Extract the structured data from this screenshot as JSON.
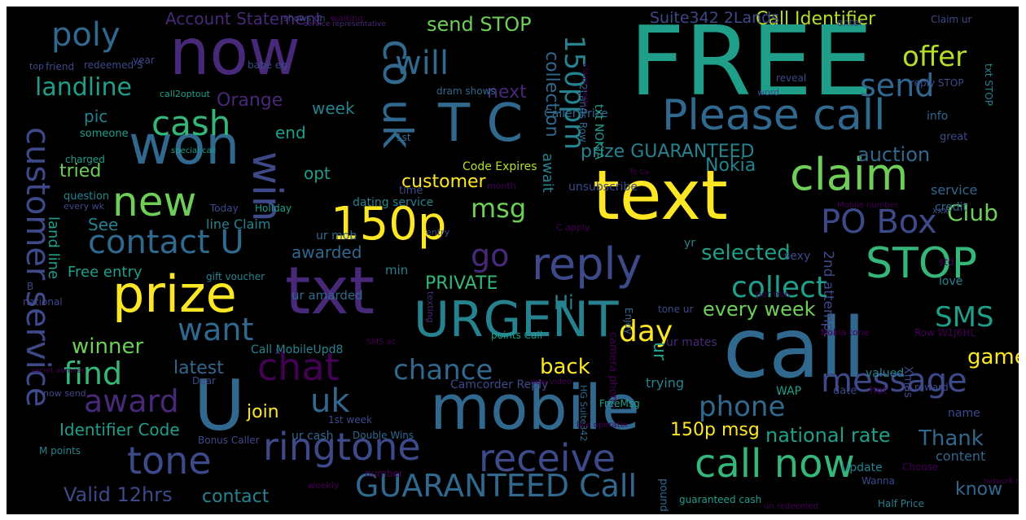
{
  "palette": {
    "yellow": "#fde725",
    "lime": "#b5de2b",
    "green": "#6ece58",
    "sea": "#35b779",
    "teal": "#1f9e89",
    "cyan": "#26828e",
    "blue": "#31688e",
    "indigo": "#3e4989",
    "purple": "#482878",
    "dark": "#440154"
  },
  "words": [
    {
      "text": "FREE",
      "color": "teal"
    },
    {
      "text": "call",
      "color": "blue"
    },
    {
      "text": "now",
      "color": "purple"
    },
    {
      "text": "text",
      "color": "yellow"
    },
    {
      "text": "txt",
      "color": "purple"
    },
    {
      "text": "U",
      "color": "blue"
    },
    {
      "text": "mobile",
      "color": "blue"
    },
    {
      "text": "URGENT",
      "color": "cyan"
    },
    {
      "text": "prize",
      "color": "yellow"
    },
    {
      "text": "won",
      "color": "blue"
    },
    {
      "text": "T C",
      "color": "blue"
    },
    {
      "text": "co uk",
      "color": "blue"
    },
    {
      "text": "Please call",
      "color": "blue"
    },
    {
      "text": "reply",
      "color": "indigo"
    },
    {
      "text": "STOP",
      "color": "sea"
    },
    {
      "text": "claim",
      "color": "green"
    },
    {
      "text": "150p",
      "color": "yellow"
    },
    {
      "text": "win",
      "color": "indigo"
    },
    {
      "text": "new",
      "color": "green"
    },
    {
      "text": "call now",
      "color": "sea"
    },
    {
      "text": "ringtone",
      "color": "indigo"
    },
    {
      "text": "tone",
      "color": "indigo"
    },
    {
      "text": "receive",
      "color": "indigo"
    },
    {
      "text": "chat",
      "color": "dark"
    },
    {
      "text": "customer service",
      "color": "indigo"
    },
    {
      "text": "message",
      "color": "indigo"
    },
    {
      "text": "GUARANTEED Call",
      "color": "blue"
    },
    {
      "text": "cash",
      "color": "sea"
    },
    {
      "text": "poly",
      "color": "blue"
    },
    {
      "text": "will",
      "color": "blue"
    },
    {
      "text": "send",
      "color": "blue"
    },
    {
      "text": "PO Box",
      "color": "indigo"
    },
    {
      "text": "contact U",
      "color": "blue"
    },
    {
      "text": "find",
      "color": "sea"
    },
    {
      "text": "award",
      "color": "purple"
    },
    {
      "text": "uk",
      "color": "blue"
    },
    {
      "text": "phone",
      "color": "blue"
    },
    {
      "text": "want",
      "color": "blue"
    },
    {
      "text": "landline",
      "color": "teal"
    },
    {
      "text": "offer",
      "color": "lime"
    },
    {
      "text": "150ppm",
      "color": "cyan"
    },
    {
      "text": "collect",
      "color": "teal"
    },
    {
      "text": "SMS",
      "color": "teal"
    },
    {
      "text": "day",
      "color": "yellow"
    },
    {
      "text": "go",
      "color": "purple"
    },
    {
      "text": "msg",
      "color": "green"
    },
    {
      "text": "chance",
      "color": "blue"
    },
    {
      "text": "Club",
      "color": "green"
    },
    {
      "text": "Nokia",
      "color": "cyan"
    },
    {
      "text": "auction",
      "color": "blue"
    },
    {
      "text": "game",
      "color": "yellow"
    },
    {
      "text": "Thank",
      "color": "blue"
    },
    {
      "text": "know",
      "color": "blue"
    },
    {
      "text": "selected",
      "color": "teal"
    },
    {
      "text": "every week",
      "color": "green"
    },
    {
      "text": "prize GUARANTEED",
      "color": "cyan"
    },
    {
      "text": "national rate",
      "color": "teal"
    },
    {
      "text": "send STOP",
      "color": "green"
    },
    {
      "text": "collection",
      "color": "blue"
    },
    {
      "text": "Call Identifier",
      "color": "lime"
    },
    {
      "text": "Account Statement",
      "color": "purple"
    },
    {
      "text": "Suite342 2Lands",
      "color": "indigo"
    },
    {
      "text": "Orange",
      "color": "purple"
    },
    {
      "text": "pic",
      "color": "cyan"
    },
    {
      "text": "week",
      "color": "cyan"
    },
    {
      "text": "end",
      "color": "teal"
    },
    {
      "text": "next",
      "color": "purple"
    },
    {
      "text": "tried",
      "color": "green"
    },
    {
      "text": "opt",
      "color": "teal"
    },
    {
      "text": "customer",
      "color": "yellow"
    },
    {
      "text": "await",
      "color": "cyan"
    },
    {
      "text": "Hi",
      "color": "cyan"
    },
    {
      "text": "See",
      "color": "cyan"
    },
    {
      "text": "awarded",
      "color": "blue"
    },
    {
      "text": "PRIVATE",
      "color": "sea"
    },
    {
      "text": "ur",
      "color": "teal"
    },
    {
      "text": "latest",
      "color": "blue"
    },
    {
      "text": "back",
      "color": "yellow"
    },
    {
      "text": "winner",
      "color": "green"
    },
    {
      "text": "join",
      "color": "yellow"
    },
    {
      "text": "Identifier Code",
      "color": "teal"
    },
    {
      "text": "Valid 12hrs",
      "color": "indigo"
    },
    {
      "text": "contact",
      "color": "cyan"
    },
    {
      "text": "150p msg",
      "color": "yellow"
    },
    {
      "text": "Free entry",
      "color": "teal"
    },
    {
      "text": "land line",
      "color": "teal"
    },
    {
      "text": "Code Expires",
      "color": "lime"
    },
    {
      "text": "dating service",
      "color": "cyan"
    },
    {
      "text": "ur amarded",
      "color": "blue"
    },
    {
      "text": "Call MobileUpd8",
      "color": "cyan"
    },
    {
      "text": "2nd attempt",
      "color": "indigo"
    },
    {
      "text": "Camcorder Reply",
      "color": "indigo"
    },
    {
      "text": "camera phone",
      "color": "dark"
    },
    {
      "text": "Caller Prize",
      "color": "blue"
    },
    {
      "text": "2Lands Row",
      "color": "blue"
    },
    {
      "text": "txt NOKIA",
      "color": "teal"
    },
    {
      "text": "unsubscribe",
      "color": "indigo"
    },
    {
      "text": "trying",
      "color": "cyan"
    },
    {
      "text": "ur mates",
      "color": "purple"
    },
    {
      "text": "valued",
      "color": "cyan"
    },
    {
      "text": "Xmas",
      "color": "indigo"
    },
    {
      "text": "sexy",
      "color": "indigo"
    },
    {
      "text": "service",
      "color": "blue"
    },
    {
      "text": "credit",
      "color": "blue"
    },
    {
      "text": "love",
      "color": "cyan"
    },
    {
      "text": "std",
      "color": "dark"
    },
    {
      "text": "content",
      "color": "blue"
    },
    {
      "text": "hot",
      "color": "dark"
    },
    {
      "text": "WAP",
      "color": "teal"
    },
    {
      "text": "date",
      "color": "indigo"
    },
    {
      "text": "name",
      "color": "indigo"
    },
    {
      "text": "reward",
      "color": "indigo"
    },
    {
      "text": "info",
      "color": "blue"
    },
    {
      "text": "reply STOP",
      "color": "indigo"
    },
    {
      "text": "txt STOP",
      "color": "cyan"
    },
    {
      "text": "reveal",
      "color": "indigo"
    },
    {
      "text": "great",
      "color": "indigo"
    },
    {
      "text": "word",
      "color": "indigo"
    },
    {
      "text": "Claim ur",
      "color": "indigo"
    },
    {
      "text": "enter",
      "color": "indigo"
    },
    {
      "text": "ur mob",
      "color": "blue"
    },
    {
      "text": "1st",
      "color": "blue"
    },
    {
      "text": "min",
      "color": "cyan"
    },
    {
      "text": "time",
      "color": "indigo"
    },
    {
      "text": "month",
      "color": "dark"
    },
    {
      "text": "line Claim",
      "color": "cyan"
    },
    {
      "text": "someone",
      "color": "teal"
    },
    {
      "text": "question",
      "color": "cyan"
    },
    {
      "text": "charged",
      "color": "teal"
    },
    {
      "text": "Today",
      "color": "indigo"
    },
    {
      "text": "Holiday",
      "color": "teal"
    },
    {
      "text": "year",
      "color": "indigo"
    },
    {
      "text": "redeemed S",
      "color": "indigo"
    },
    {
      "text": "friend",
      "color": "indigo"
    },
    {
      "text": "babe eg",
      "color": "indigo"
    },
    {
      "text": "dram shows",
      "color": "blue"
    },
    {
      "text": "shows un",
      "color": "indigo"
    },
    {
      "text": "waiting",
      "color": "dark"
    },
    {
      "text": "number",
      "color": "dark"
    },
    {
      "text": "1st week",
      "color": "indigo"
    },
    {
      "text": "ur cash",
      "color": "blue"
    },
    {
      "text": "Double Wins",
      "color": "blue"
    },
    {
      "text": "gift voucher",
      "color": "cyan"
    },
    {
      "text": "Bonus Caller",
      "color": "indigo"
    },
    {
      "text": "M points",
      "color": "cyan"
    },
    {
      "text": "weekly",
      "color": "dark"
    },
    {
      "text": "now send",
      "color": "indigo"
    },
    {
      "text": "Dear",
      "color": "indigo"
    },
    {
      "text": "points Call",
      "color": "teal"
    },
    {
      "text": "tone ur",
      "color": "indigo"
    },
    {
      "text": "FreeMsg",
      "color": "teal"
    },
    {
      "text": "Update",
      "color": "cyan"
    },
    {
      "text": "pound",
      "color": "blue"
    },
    {
      "text": "yr",
      "color": "cyan"
    },
    {
      "text": "Enjoy",
      "color": "blue"
    },
    {
      "text": "Wanna",
      "color": "indigo"
    },
    {
      "text": "guaranteed cash",
      "color": "teal"
    },
    {
      "text": "Half Price",
      "color": "cyan"
    },
    {
      "text": "Choose",
      "color": "dark"
    },
    {
      "text": "Row W1J6HL",
      "color": "dark"
    },
    {
      "text": "HG Suite342",
      "color": "blue"
    },
    {
      "text": "C apply",
      "color": "dark"
    },
    {
      "text": "every wk",
      "color": "indigo"
    },
    {
      "text": "per min",
      "color": "dark"
    },
    {
      "text": "Nokia tone",
      "color": "dark"
    },
    {
      "text": "texting",
      "color": "purple"
    },
    {
      "text": "entry",
      "color": "indigo"
    },
    {
      "text": "xxx",
      "color": "indigo"
    },
    {
      "text": "national",
      "color": "indigo"
    },
    {
      "text": "call2optout",
      "color": "teal"
    },
    {
      "text": "top",
      "color": "indigo"
    },
    {
      "text": "special call",
      "color": "teal"
    },
    {
      "text": "Mobile number",
      "color": "dark"
    },
    {
      "text": "network mins",
      "color": "dark"
    },
    {
      "text": "SMS ac",
      "color": "dark"
    },
    {
      "text": "un redeemed",
      "color": "dark"
    },
    {
      "text": "live operator",
      "color": "dark"
    },
    {
      "text": "new video",
      "color": "dark"
    },
    {
      "text": "secret admirer",
      "color": "dark"
    },
    {
      "text": "To Ca",
      "color": "dark"
    },
    {
      "text": "claim code",
      "color": "dark"
    },
    {
      "text": "service representative",
      "color": "purple"
    },
    {
      "text": "x",
      "color": "indigo"
    },
    {
      "text": "B",
      "color": "indigo"
    }
  ]
}
